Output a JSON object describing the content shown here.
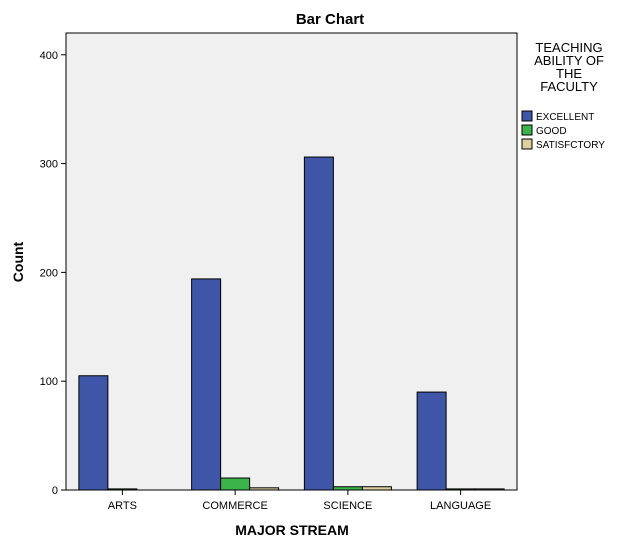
{
  "chart_data": {
    "type": "bar",
    "title": "Bar Chart",
    "xlabel": "MAJOR STREAM",
    "ylabel": "Count",
    "categories": [
      "ARTS",
      "COMMERCE",
      "SCIENCE",
      "LANGUAGE"
    ],
    "series": [
      {
        "name": "EXCELLENT",
        "values": [
          105,
          194,
          306,
          90
        ],
        "color": "#3F56A8"
      },
      {
        "name": "GOOD",
        "values": [
          1,
          11,
          3,
          1
        ],
        "color": "#3BB44A"
      },
      {
        "name": "SATISFCTORY",
        "values": [
          0,
          2,
          3,
          1
        ],
        "color": "#D9CF9F"
      }
    ],
    "ylim": [
      0,
      420
    ],
    "yticks": [
      0,
      100,
      200,
      300,
      400
    ],
    "legend": {
      "title_lines": [
        "TEACHING",
        "ABILITY OF",
        "THE",
        "FACULTY"
      ],
      "placement": "right"
    },
    "plot_background": "#F0F0F0",
    "grid": false
  }
}
